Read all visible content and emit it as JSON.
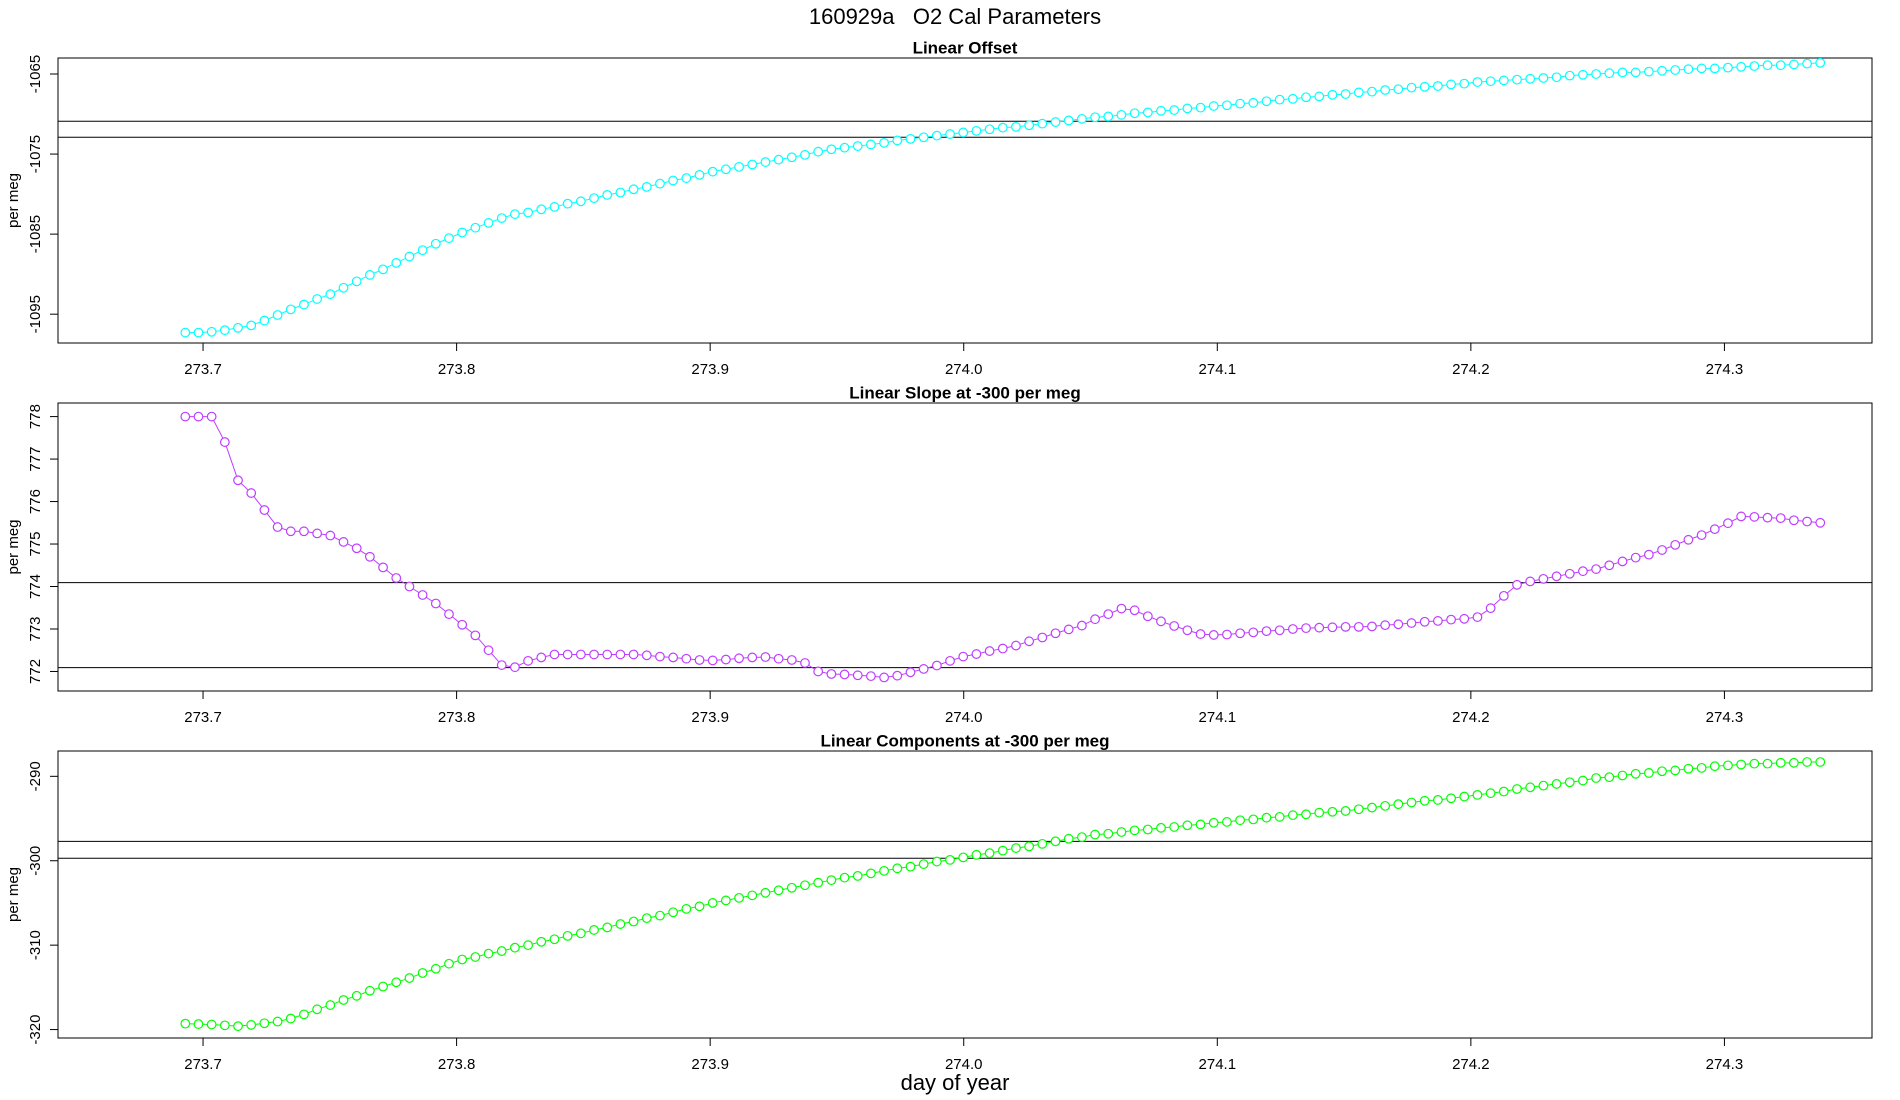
{
  "title": "160929a   O2 Cal Parameters",
  "xlabel": "day of year",
  "chart_data": [
    {
      "type": "scatter",
      "title": "Linear Offset",
      "ylabel": "per meg",
      "color": "#00ffff",
      "lines": true,
      "xlim": [
        273.6428,
        274.3582
      ],
      "xticks": [
        273.7,
        273.8,
        273.9,
        {
          "value": 274,
          "label": "274.0"
        },
        274.1,
        274.2,
        274.3
      ],
      "ylim": [
        -1098.6,
        -1063.0
      ],
      "yticks": [
        -1095,
        -1085,
        -1075,
        -1065
      ],
      "hlines": [
        -1070.9,
        -1072.9
      ],
      "x": [
        273.693,
        273.6982,
        273.7034,
        273.7086,
        273.7138,
        273.719,
        273.7242,
        273.7294,
        273.7346,
        273.7398,
        273.745,
        273.7502,
        273.7554,
        273.7606,
        273.7658,
        273.771,
        273.7762,
        273.7814,
        273.7866,
        273.7918,
        273.797,
        273.8022,
        273.8074,
        273.8126,
        273.8178,
        273.823,
        273.8282,
        273.8334,
        273.8386,
        273.8438,
        273.849,
        273.8542,
        273.8594,
        273.8646,
        273.8698,
        273.875,
        273.8802,
        273.8854,
        273.8906,
        273.8958,
        273.901,
        273.9062,
        273.9114,
        273.9166,
        273.9218,
        273.927,
        273.9322,
        273.9374,
        273.9426,
        273.9478,
        273.953,
        273.9582,
        273.9634,
        273.9686,
        273.9738,
        273.979,
        273.9842,
        273.9894,
        273.9946,
        273.9998,
        274.005,
        274.0102,
        274.0154,
        274.0206,
        274.0258,
        274.031,
        274.0362,
        274.0414,
        274.0466,
        274.0518,
        274.057,
        274.0622,
        274.0674,
        274.0726,
        274.0778,
        274.083,
        274.0882,
        274.0934,
        274.0986,
        274.1038,
        274.109,
        274.1142,
        274.1194,
        274.1246,
        274.1298,
        274.135,
        274.1402,
        274.1454,
        274.1506,
        274.1558,
        274.161,
        274.1662,
        274.1714,
        274.1766,
        274.1818,
        274.187,
        274.1922,
        274.1974,
        274.2026,
        274.2078,
        274.213,
        274.2182,
        274.2234,
        274.2286,
        274.2338,
        274.239,
        274.2442,
        274.2494,
        274.2546,
        274.2598,
        274.265,
        274.2702,
        274.2754,
        274.2806,
        274.2858,
        274.291,
        274.2962,
        274.3014,
        274.3066,
        274.3118,
        274.317,
        274.3222,
        274.3274,
        274.3326,
        274.3378
      ],
      "values": [
        -1097.3,
        -1097.3,
        -1097.2,
        -1097.0,
        -1096.7,
        -1096.4,
        -1095.8,
        -1095.1,
        -1094.4,
        -1093.8,
        -1093.1,
        -1092.5,
        -1091.7,
        -1090.9,
        -1090.1,
        -1089.4,
        -1088.6,
        -1087.8,
        -1087.0,
        -1086.2,
        -1085.5,
        -1084.8,
        -1084.2,
        -1083.6,
        -1083.0,
        -1082.5,
        -1082.3,
        -1081.9,
        -1081.6,
        -1081.2,
        -1080.9,
        -1080.5,
        -1080.1,
        -1079.8,
        -1079.4,
        -1079.1,
        -1078.7,
        -1078.3,
        -1078.0,
        -1077.6,
        -1077.2,
        -1076.9,
        -1076.6,
        -1076.3,
        -1076.0,
        -1075.7,
        -1075.4,
        -1075.1,
        -1074.7,
        -1074.4,
        -1074.2,
        -1074.0,
        -1073.8,
        -1073.6,
        -1073.3,
        -1073.1,
        -1072.9,
        -1072.7,
        -1072.5,
        -1072.3,
        -1072.1,
        -1071.9,
        -1071.7,
        -1071.6,
        -1071.4,
        -1071.2,
        -1071.0,
        -1070.8,
        -1070.6,
        -1070.4,
        -1070.3,
        -1070.1,
        -1069.9,
        -1069.8,
        -1069.6,
        -1069.5,
        -1069.3,
        -1069.2,
        -1069.0,
        -1068.9,
        -1068.7,
        -1068.6,
        -1068.4,
        -1068.2,
        -1068.1,
        -1067.9,
        -1067.8,
        -1067.6,
        -1067.5,
        -1067.3,
        -1067.2,
        -1067.0,
        -1066.9,
        -1066.7,
        -1066.6,
        -1066.5,
        -1066.3,
        -1066.2,
        -1066.0,
        -1065.9,
        -1065.8,
        -1065.7,
        -1065.6,
        -1065.5,
        -1065.4,
        -1065.2,
        -1065.1,
        -1065.0,
        -1064.9,
        -1064.8,
        -1064.8,
        -1064.7,
        -1064.6,
        -1064.5,
        -1064.4,
        -1064.3,
        -1064.3,
        -1064.2,
        -1064.1,
        -1064.0,
        -1063.9,
        -1063.9,
        -1063.8,
        -1063.7,
        -1063.6
      ]
    },
    {
      "type": "scatter",
      "title": "Linear Slope at -300 per meg",
      "ylabel": "per meg",
      "color": "#bf3eff",
      "lines": true,
      "xlim": [
        273.6428,
        274.3582
      ],
      "xticks": [
        273.7,
        273.8,
        273.9,
        {
          "value": 274,
          "label": "274.0"
        },
        274.1,
        274.2,
        274.3
      ],
      "ylim": [
        771.54,
        778.32
      ],
      "yticks": [
        772,
        773,
        774,
        775,
        776,
        777,
        778
      ],
      "hlines": [
        774.09,
        772.09
      ],
      "x": [
        273.693,
        273.6982,
        273.7034,
        273.7086,
        273.7138,
        273.719,
        273.7242,
        273.7294,
        273.7346,
        273.7398,
        273.745,
        273.7502,
        273.7554,
        273.7606,
        273.7658,
        273.771,
        273.7762,
        273.7814,
        273.7866,
        273.7918,
        273.797,
        273.8022,
        273.8074,
        273.8126,
        273.8178,
        273.823,
        273.8282,
        273.8334,
        273.8386,
        273.8438,
        273.849,
        273.8542,
        273.8594,
        273.8646,
        273.8698,
        273.875,
        273.8802,
        273.8854,
        273.8906,
        273.8958,
        273.901,
        273.9062,
        273.9114,
        273.9166,
        273.9218,
        273.927,
        273.9322,
        273.9374,
        273.9426,
        273.9478,
        273.953,
        273.9582,
        273.9634,
        273.9686,
        273.9738,
        273.979,
        273.9842,
        273.9894,
        273.9946,
        273.9998,
        274.005,
        274.0102,
        274.0154,
        274.0206,
        274.0258,
        274.031,
        274.0362,
        274.0414,
        274.0466,
        274.0518,
        274.057,
        274.0622,
        274.0674,
        274.0726,
        274.0778,
        274.083,
        274.0882,
        274.0934,
        274.0986,
        274.1038,
        274.109,
        274.1142,
        274.1194,
        274.1246,
        274.1298,
        274.135,
        274.1402,
        274.1454,
        274.1506,
        274.1558,
        274.161,
        274.1662,
        274.1714,
        274.1766,
        274.1818,
        274.187,
        274.1922,
        274.1974,
        274.2026,
        274.2078,
        274.213,
        274.2182,
        274.2234,
        274.2286,
        274.2338,
        274.239,
        274.2442,
        274.2494,
        274.2546,
        274.2598,
        274.265,
        274.2702,
        274.2754,
        274.2806,
        274.2858,
        274.291,
        274.2962,
        274.3014,
        274.3066,
        274.3118,
        274.317,
        274.3222,
        274.3274,
        274.3326,
        274.3378
      ],
      "values": [
        778.0,
        778.0,
        778.0,
        777.4,
        776.5,
        776.2,
        775.8,
        775.4,
        775.3,
        775.3,
        775.25,
        775.2,
        775.05,
        774.9,
        774.7,
        774.45,
        774.2,
        774.0,
        773.8,
        773.6,
        773.35,
        773.1,
        772.85,
        772.5,
        772.15,
        772.1,
        772.25,
        772.33,
        772.4,
        772.4,
        772.4,
        772.4,
        772.4,
        772.4,
        772.4,
        772.38,
        772.35,
        772.33,
        772.3,
        772.27,
        772.26,
        772.28,
        772.31,
        772.33,
        772.34,
        772.3,
        772.27,
        772.2,
        772.0,
        771.94,
        771.93,
        771.91,
        771.89,
        771.86,
        771.9,
        771.98,
        772.06,
        772.14,
        772.25,
        772.35,
        772.41,
        772.48,
        772.54,
        772.61,
        772.71,
        772.8,
        772.9,
        772.99,
        773.08,
        773.23,
        773.35,
        773.48,
        773.44,
        773.3,
        773.18,
        773.07,
        772.97,
        772.88,
        772.86,
        772.87,
        772.9,
        772.92,
        772.95,
        772.97,
        773.0,
        773.02,
        773.03,
        773.04,
        773.05,
        773.05,
        773.06,
        773.09,
        773.11,
        773.14,
        773.17,
        773.19,
        773.22,
        773.24,
        773.28,
        773.49,
        773.78,
        774.04,
        774.12,
        774.18,
        774.24,
        774.3,
        774.36,
        774.41,
        774.5,
        774.59,
        774.68,
        774.75,
        774.86,
        774.98,
        775.1,
        775.21,
        775.35,
        775.49,
        775.65,
        775.64,
        775.62,
        775.61,
        775.56,
        775.53,
        775.5
      ]
    },
    {
      "type": "scatter",
      "title": "Linear Components at -300 per meg",
      "ylabel": "per meg",
      "color": "#00ff00",
      "lines": true,
      "xlim": [
        273.6428,
        274.3582
      ],
      "xticks": [
        273.7,
        273.8,
        273.9,
        {
          "value": 274,
          "label": "274.0"
        },
        274.1,
        274.2,
        274.3
      ],
      "ylim": [
        -321.0,
        -287.0
      ],
      "yticks": [
        -320,
        -310,
        -300,
        -290
      ],
      "hlines": [
        -297.7,
        -299.7
      ],
      "x": [
        273.693,
        273.6982,
        273.7034,
        273.7086,
        273.7138,
        273.719,
        273.7242,
        273.7294,
        273.7346,
        273.7398,
        273.745,
        273.7502,
        273.7554,
        273.7606,
        273.7658,
        273.771,
        273.7762,
        273.7814,
        273.7866,
        273.7918,
        273.797,
        273.8022,
        273.8074,
        273.8126,
        273.8178,
        273.823,
        273.8282,
        273.8334,
        273.8386,
        273.8438,
        273.849,
        273.8542,
        273.8594,
        273.8646,
        273.8698,
        273.875,
        273.8802,
        273.8854,
        273.8906,
        273.8958,
        273.901,
        273.9062,
        273.9114,
        273.9166,
        273.9218,
        273.927,
        273.9322,
        273.9374,
        273.9426,
        273.9478,
        273.953,
        273.9582,
        273.9634,
        273.9686,
        273.9738,
        273.979,
        273.9842,
        273.9894,
        273.9946,
        273.9998,
        274.005,
        274.0102,
        274.0154,
        274.0206,
        274.0258,
        274.031,
        274.0362,
        274.0414,
        274.0466,
        274.0518,
        274.057,
        274.0622,
        274.0674,
        274.0726,
        274.0778,
        274.083,
        274.0882,
        274.0934,
        274.0986,
        274.1038,
        274.109,
        274.1142,
        274.1194,
        274.1246,
        274.1298,
        274.135,
        274.1402,
        274.1454,
        274.1506,
        274.1558,
        274.161,
        274.1662,
        274.1714,
        274.1766,
        274.1818,
        274.187,
        274.1922,
        274.1974,
        274.2026,
        274.2078,
        274.213,
        274.2182,
        274.2234,
        274.2286,
        274.2338,
        274.239,
        274.2442,
        274.2494,
        274.2546,
        274.2598,
        274.265,
        274.2702,
        274.2754,
        274.2806,
        274.2858,
        274.291,
        274.2962,
        274.3014,
        274.3066,
        274.3118,
        274.317,
        274.3222,
        274.3274,
        274.3326,
        274.3378
      ],
      "values": [
        -319.3,
        -319.35,
        -319.4,
        -319.5,
        -319.6,
        -319.45,
        -319.25,
        -319.05,
        -318.7,
        -318.2,
        -317.6,
        -317.1,
        -316.5,
        -316.0,
        -315.4,
        -314.9,
        -314.4,
        -313.9,
        -313.3,
        -312.8,
        -312.2,
        -311.7,
        -311.4,
        -311.0,
        -310.7,
        -310.3,
        -310.0,
        -309.6,
        -309.3,
        -308.9,
        -308.6,
        -308.2,
        -307.9,
        -307.5,
        -307.2,
        -306.8,
        -306.5,
        -306.1,
        -305.7,
        -305.4,
        -305.0,
        -304.7,
        -304.4,
        -304.1,
        -303.8,
        -303.5,
        -303.2,
        -302.9,
        -302.6,
        -302.3,
        -302.0,
        -301.8,
        -301.5,
        -301.2,
        -300.9,
        -300.7,
        -300.4,
        -300.1,
        -299.9,
        -299.6,
        -299.3,
        -299.1,
        -298.8,
        -298.5,
        -298.3,
        -298.0,
        -297.7,
        -297.4,
        -297.2,
        -296.9,
        -296.8,
        -296.6,
        -296.4,
        -296.3,
        -296.1,
        -296.0,
        -295.8,
        -295.7,
        -295.5,
        -295.4,
        -295.2,
        -295.1,
        -294.9,
        -294.8,
        -294.6,
        -294.5,
        -294.3,
        -294.2,
        -294.1,
        -293.9,
        -293.7,
        -293.5,
        -293.3,
        -293.1,
        -292.9,
        -292.8,
        -292.6,
        -292.4,
        -292.2,
        -292.0,
        -291.8,
        -291.5,
        -291.3,
        -291.1,
        -290.9,
        -290.7,
        -290.5,
        -290.2,
        -290.1,
        -289.9,
        -289.7,
        -289.6,
        -289.4,
        -289.3,
        -289.1,
        -289.0,
        -288.8,
        -288.7,
        -288.6,
        -288.5,
        -288.5,
        -288.4,
        -288.4,
        -288.3,
        -288.3
      ]
    }
  ]
}
